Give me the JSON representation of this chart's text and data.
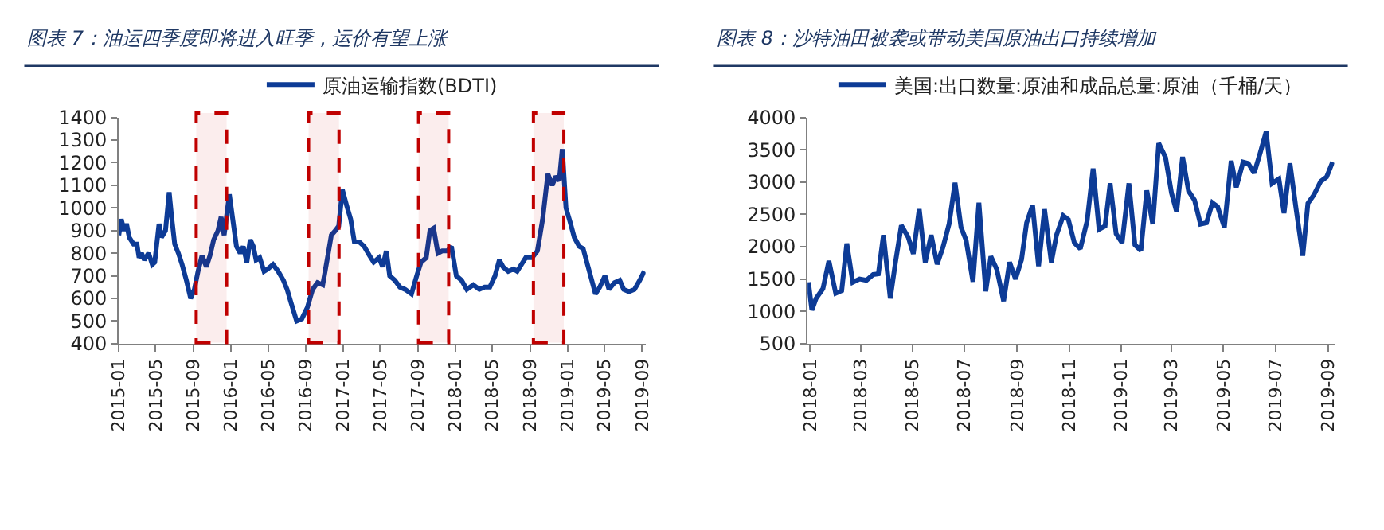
{
  "chart_data": [
    {
      "type": "line",
      "title": "图表 7：油运四季度即将进入旺季，运价有望上涨",
      "legend": "top",
      "xlim": [
        "2015-01-01",
        "2019-09-12"
      ],
      "ylim": [
        400,
        1400
      ],
      "xticks": [
        {
          "value": "2015-01-01",
          "label": "2015-01"
        },
        {
          "value": "2015-05-01",
          "label": "2015-05"
        },
        {
          "value": "2015-09-01",
          "label": "2015-09"
        },
        {
          "value": "2016-01-01",
          "label": "2016-01"
        },
        {
          "value": "2016-05-01",
          "label": "2016-05"
        },
        {
          "value": "2016-09-01",
          "label": "2016-09"
        },
        {
          "value": "2017-01-01",
          "label": "2017-01"
        },
        {
          "value": "2017-05-01",
          "label": "2017-05"
        },
        {
          "value": "2017-09-01",
          "label": "2017-09"
        },
        {
          "value": "2018-01-01",
          "label": "2018-01"
        },
        {
          "value": "2018-05-01",
          "label": "2018-05"
        },
        {
          "value": "2018-09-01",
          "label": "2018-09"
        },
        {
          "value": "2019-01-01",
          "label": "2019-01"
        },
        {
          "value": "2019-05-01",
          "label": "2019-05"
        },
        {
          "value": "2019-09-01",
          "label": "2019-09"
        }
      ],
      "yticks": [
        400,
        500,
        600,
        700,
        800,
        900,
        1000,
        1100,
        1200,
        1300,
        1400
      ],
      "bands": [
        {
          "axis": "x",
          "from": "2015-09-10",
          "to": "2015-12-18",
          "color": "#c00000"
        },
        {
          "axis": "x",
          "from": "2016-09-10",
          "to": "2016-12-18",
          "color": "#c00000"
        },
        {
          "axis": "x",
          "from": "2017-09-03",
          "to": "2017-12-10",
          "color": "#c00000"
        },
        {
          "axis": "x",
          "from": "2018-09-12",
          "to": "2018-12-20",
          "color": "#c00000"
        }
      ],
      "series": [
        {
          "name": "原油运输指数(BDTI)",
          "color": "#0d3b96",
          "x": [
            "2015-01-01",
            "2015-01-09",
            "2015-01-18",
            "2015-01-26",
            "2015-02-04",
            "2015-02-18",
            "2015-03-01",
            "2015-03-08",
            "2015-03-16",
            "2015-03-25",
            "2015-04-08",
            "2015-04-20",
            "2015-04-28",
            "2015-05-12",
            "2015-05-20",
            "2015-06-02",
            "2015-06-14",
            "2015-06-22",
            "2015-07-02",
            "2015-07-14",
            "2015-07-26",
            "2015-08-09",
            "2015-08-23",
            "2015-09-04",
            "2015-09-16",
            "2015-09-29",
            "2015-10-13",
            "2015-10-25",
            "2015-11-06",
            "2015-11-20",
            "2015-11-30",
            "2015-12-10",
            "2015-12-27",
            "2016-01-07",
            "2016-01-19",
            "2016-01-31",
            "2016-02-10",
            "2016-02-22",
            "2016-03-04",
            "2016-03-14",
            "2016-03-23",
            "2016-04-04",
            "2016-04-18",
            "2016-04-30",
            "2016-05-17",
            "2016-06-03",
            "2016-06-20",
            "2016-07-02",
            "2016-07-15",
            "2016-08-02",
            "2016-08-19",
            "2016-09-06",
            "2016-09-23",
            "2016-10-09",
            "2016-10-26",
            "2016-11-13",
            "2016-11-23",
            "2016-12-06",
            "2016-12-17",
            "2016-12-29",
            "2017-01-12",
            "2017-01-25",
            "2017-02-06",
            "2017-02-22",
            "2017-03-10",
            "2017-03-27",
            "2017-04-10",
            "2017-04-27",
            "2017-05-09",
            "2017-05-21",
            "2017-06-01",
            "2017-06-18",
            "2017-07-04",
            "2017-07-21",
            "2017-08-11",
            "2017-08-28",
            "2017-09-11",
            "2017-09-28",
            "2017-10-10",
            "2017-10-22",
            "2017-11-05",
            "2017-11-19",
            "2017-12-06",
            "2017-12-19",
            "2018-01-04",
            "2018-01-21",
            "2018-02-07",
            "2018-02-28",
            "2018-03-20",
            "2018-04-06",
            "2018-04-23",
            "2018-05-10",
            "2018-05-24",
            "2018-06-05",
            "2018-06-22",
            "2018-07-09",
            "2018-07-21",
            "2018-08-04",
            "2018-08-18",
            "2018-09-08",
            "2018-09-25",
            "2018-10-12",
            "2018-10-29",
            "2018-11-12",
            "2018-11-24",
            "2018-12-05",
            "2018-12-15",
            "2018-12-27",
            "2019-01-09",
            "2019-01-23",
            "2019-02-08",
            "2019-02-21",
            "2019-03-09",
            "2019-03-21",
            "2019-04-02",
            "2019-04-16",
            "2019-05-03",
            "2019-05-16",
            "2019-06-03",
            "2019-06-20",
            "2019-07-03",
            "2019-07-20",
            "2019-08-07",
            "2019-08-24",
            "2019-09-08"
          ],
          "values": [
            880,
            950,
            900,
            930,
            870,
            840,
            840,
            780,
            800,
            770,
            800,
            750,
            760,
            930,
            870,
            900,
            1070,
            960,
            840,
            800,
            750,
            680,
            600,
            640,
            720,
            790,
            740,
            790,
            860,
            900,
            960,
            880,
            1060,
            950,
            830,
            800,
            830,
            760,
            860,
            830,
            770,
            780,
            720,
            730,
            750,
            720,
            680,
            640,
            580,
            500,
            510,
            560,
            640,
            670,
            660,
            800,
            880,
            900,
            920,
            1080,
            1010,
            950,
            850,
            850,
            830,
            790,
            760,
            780,
            740,
            810,
            700,
            680,
            650,
            640,
            620,
            700,
            760,
            780,
            900,
            910,
            800,
            810,
            810,
            830,
            700,
            680,
            640,
            660,
            640,
            650,
            650,
            700,
            770,
            740,
            720,
            730,
            720,
            750,
            780,
            780,
            810,
            950,
            1150,
            1100,
            1140,
            1120,
            1260,
            1000,
            940,
            870,
            830,
            820,
            740,
            680,
            620,
            650,
            700,
            640,
            670,
            680,
            640,
            630,
            640,
            680,
            720
          ]
        }
      ]
    },
    {
      "type": "line",
      "title": "图表 8：沙特油田被袭或带动美国原油出口持续增加",
      "legend": "top",
      "xlim": [
        "2017-12-29",
        "2019-09-08"
      ],
      "ylim": [
        500,
        4000
      ],
      "xticks": [
        {
          "value": "2018-01-01",
          "label": "2018-01"
        },
        {
          "value": "2018-03-01",
          "label": "2018-03"
        },
        {
          "value": "2018-05-01",
          "label": "2018-05"
        },
        {
          "value": "2018-07-01",
          "label": "2018-07"
        },
        {
          "value": "2018-09-01",
          "label": "2018-09"
        },
        {
          "value": "2018-11-01",
          "label": "2018-11"
        },
        {
          "value": "2019-01-01",
          "label": "2019-01"
        },
        {
          "value": "2019-03-01",
          "label": "2019-03"
        },
        {
          "value": "2019-05-01",
          "label": "2019-05"
        },
        {
          "value": "2019-07-01",
          "label": "2019-07"
        },
        {
          "value": "2019-09-01",
          "label": "2019-09"
        }
      ],
      "yticks": [
        500,
        1000,
        1500,
        2000,
        2500,
        3000,
        3500,
        4000
      ],
      "series": [
        {
          "name": "美国:出口数量:原油和成品总量:原油（千桶/天）",
          "color": "#0d3b96",
          "x": [
            "2017-12-30",
            "2018-01-03",
            "2018-01-08",
            "2018-01-16",
            "2018-01-23",
            "2018-01-31",
            "2018-02-07",
            "2018-02-13",
            "2018-02-20",
            "2018-02-28",
            "2018-03-08",
            "2018-03-16",
            "2018-03-22",
            "2018-03-28",
            "2018-04-05",
            "2018-04-11",
            "2018-04-18",
            "2018-04-26",
            "2018-05-02",
            "2018-05-09",
            "2018-05-16",
            "2018-05-23",
            "2018-05-30",
            "2018-06-06",
            "2018-06-13",
            "2018-06-20",
            "2018-06-27",
            "2018-07-03",
            "2018-07-11",
            "2018-07-18",
            "2018-07-26",
            "2018-08-01",
            "2018-08-08",
            "2018-08-16",
            "2018-08-23",
            "2018-08-30",
            "2018-09-06",
            "2018-09-12",
            "2018-09-19",
            "2018-09-26",
            "2018-10-03",
            "2018-10-11",
            "2018-10-17",
            "2018-10-25",
            "2018-10-31",
            "2018-11-07",
            "2018-11-14",
            "2018-11-22",
            "2018-11-29",
            "2018-12-06",
            "2018-12-13",
            "2018-12-19",
            "2018-12-26",
            "2019-01-02",
            "2019-01-10",
            "2019-01-17",
            "2019-01-24",
            "2019-01-31",
            "2019-02-07",
            "2019-02-14",
            "2019-02-22",
            "2019-03-01",
            "2019-03-07",
            "2019-03-14",
            "2019-03-21",
            "2019-03-28",
            "2019-04-04",
            "2019-04-11",
            "2019-04-18",
            "2019-04-24",
            "2019-05-02",
            "2019-05-10",
            "2019-05-16",
            "2019-05-24",
            "2019-05-30",
            "2019-06-06",
            "2019-06-13",
            "2019-06-20",
            "2019-06-27",
            "2019-07-05",
            "2019-07-11",
            "2019-07-18",
            "2019-07-25",
            "2019-08-02",
            "2019-08-08",
            "2019-08-15",
            "2019-08-23",
            "2019-08-30",
            "2019-09-06"
          ],
          "values": [
            1450,
            1020,
            1200,
            1350,
            1780,
            1280,
            1320,
            2050,
            1450,
            1500,
            1480,
            1570,
            1580,
            2180,
            1200,
            1750,
            2330,
            2150,
            1890,
            2580,
            1760,
            2180,
            1730,
            2000,
            2350,
            2990,
            2300,
            2100,
            1460,
            2680,
            1310,
            1850,
            1650,
            1160,
            1760,
            1500,
            1800,
            2370,
            2640,
            1700,
            2580,
            1760,
            2180,
            2480,
            2420,
            2060,
            1970,
            2400,
            3210,
            2270,
            2320,
            2980,
            2200,
            2060,
            2980,
            2030,
            1940,
            2870,
            2350,
            3600,
            3380,
            2830,
            2540,
            3390,
            2860,
            2720,
            2350,
            2370,
            2680,
            2620,
            2300,
            3330,
            2920,
            3310,
            3290,
            3140,
            3450,
            3780,
            2980,
            3050,
            2520,
            3290,
            2600,
            1860,
            2670,
            2800,
            3010,
            3080,
            3310
          ]
        }
      ]
    }
  ]
}
